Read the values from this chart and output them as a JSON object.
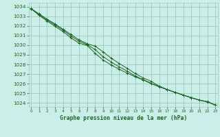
{
  "xlabel": "Graphe pression niveau de la mer (hPa)",
  "xlim_left": -0.3,
  "xlim_right": 23.3,
  "ylim_bottom": 1023.6,
  "ylim_top": 1034.4,
  "yticks": [
    1024,
    1025,
    1026,
    1027,
    1028,
    1029,
    1030,
    1031,
    1032,
    1033,
    1034
  ],
  "xticks": [
    0,
    1,
    2,
    3,
    4,
    5,
    6,
    7,
    8,
    9,
    10,
    11,
    12,
    13,
    14,
    15,
    16,
    17,
    18,
    19,
    20,
    21,
    22,
    23
  ],
  "background_color": "#cceee8",
  "grid_color": "#99ccbb",
  "line_color": "#1a6620",
  "tick_label_color": "#1a6620",
  "line1_y": [
    1033.8,
    1033.25,
    1032.7,
    1032.2,
    1031.65,
    1031.1,
    1030.55,
    1030.15,
    1029.9,
    1029.3,
    1028.65,
    1028.1,
    1027.6,
    1027.05,
    1026.6,
    1026.25,
    1025.75,
    1025.4,
    1025.1,
    1024.82,
    1024.55,
    1024.3,
    1024.12,
    1023.78
  ],
  "line2_y": [
    1033.78,
    1033.2,
    1032.6,
    1032.1,
    1031.55,
    1030.95,
    1030.4,
    1030.05,
    1029.55,
    1028.8,
    1028.25,
    1027.75,
    1027.3,
    1026.8,
    1026.42,
    1026.05,
    1025.7,
    1025.38,
    1025.1,
    1024.82,
    1024.55,
    1024.3,
    1024.12,
    1023.78
  ],
  "line3_y": [
    1033.78,
    1033.1,
    1032.5,
    1031.95,
    1031.4,
    1030.75,
    1030.2,
    1029.98,
    1029.15,
    1028.45,
    1027.95,
    1027.5,
    1027.1,
    1026.72,
    1026.38,
    1026.0,
    1025.68,
    1025.38,
    1025.1,
    1024.82,
    1024.55,
    1024.3,
    1024.15,
    1023.78
  ]
}
